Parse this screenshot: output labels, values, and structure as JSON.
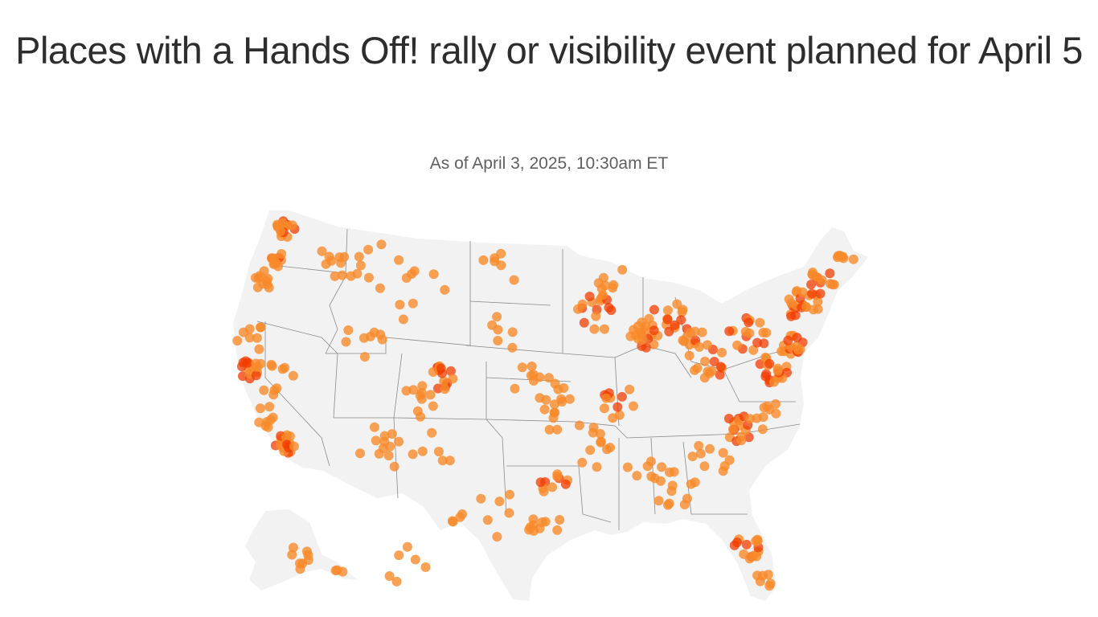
{
  "title": "Places with a Hands Off! rally or visibility event planned for April 5",
  "subtitle": "As of April 3, 2025, 10:30am ET",
  "map": {
    "region": "United States",
    "land_color": "#f2f2f2",
    "border_color": "#8a8a8a",
    "marker_color": "#f7892a",
    "marker_dense_color": "#f23c00",
    "marker_type": "circle"
  }
}
